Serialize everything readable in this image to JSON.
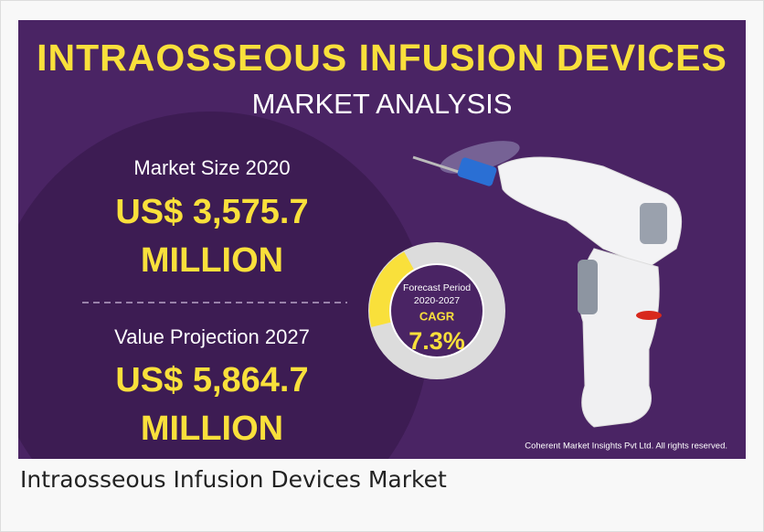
{
  "header": {
    "title": "INTRAOSSEOUS INFUSION DEVICES",
    "subtitle": "MARKET ANALYSIS"
  },
  "stats": [
    {
      "label": "Market Size 2020",
      "value": "US$ 3,575.7",
      "unit": "MILLION"
    },
    {
      "label": "Value Projection 2027",
      "value": "US$ 5,864.7",
      "unit": "MILLION"
    }
  ],
  "cagr": {
    "label": "Forecast Period",
    "period": "2020-2027",
    "metric": "CAGR",
    "value": "7.3%"
  },
  "footer": {
    "credit": "Coherent Market Insights Pvt Ltd. All rights reserved."
  },
  "caption": "Intraosseous Infusion Devices Market"
}
